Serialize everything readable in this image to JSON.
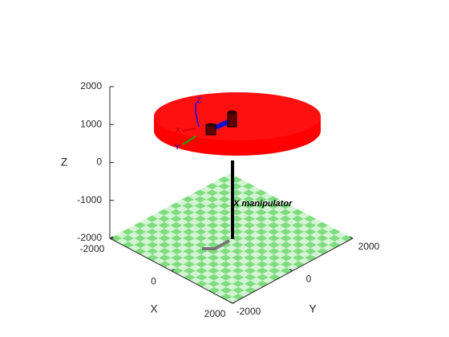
{
  "chart_data": {
    "type": "scatter3d",
    "xlabel": "X",
    "ylabel": "Y",
    "zlabel": "Z",
    "xlim": [
      -2000,
      2000
    ],
    "ylim": [
      -2000,
      2000
    ],
    "zlim": [
      -2000,
      2000
    ],
    "xticks": [
      -2000,
      0,
      2000
    ],
    "yticks": [
      -2000,
      0,
      2000
    ],
    "zticks": [
      -2000,
      -1000,
      0,
      1000,
      2000
    ],
    "annotation": "X manipulator",
    "frame_labels": [
      "X",
      "Y",
      "Z"
    ]
  }
}
